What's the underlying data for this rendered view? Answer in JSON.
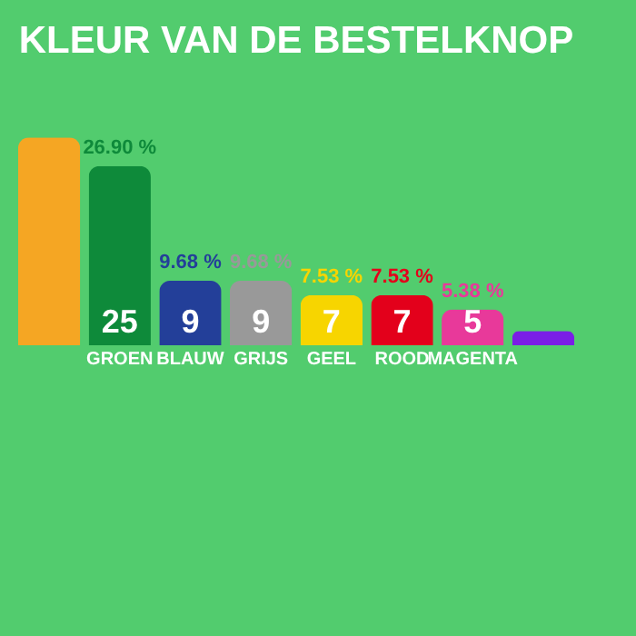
{
  "chart_data": {
    "type": "bar",
    "title": "KLEUR VAN DE BESTELKNOP",
    "categories": [
      null,
      "GROEN",
      "BLAUW",
      "GRIJS",
      "GEEL",
      "ROOD",
      "MAGENTA",
      null
    ],
    "values": [
      29,
      25,
      9,
      9,
      7,
      7,
      5,
      2
    ],
    "colors": [
      "#f5a623",
      "#0e8a3a",
      "#233f99",
      "#999999",
      "#f7d500",
      "#e3001b",
      "#e8399a",
      "#7a1ee6"
    ],
    "value_labels": [
      null,
      "25",
      "9",
      "9",
      "7",
      "7",
      "5",
      null
    ],
    "annotations": [
      {
        "text": "26.90 %",
        "x": "GROEN",
        "y": 25
      },
      {
        "text": "9.68 %",
        "x": "BLAUW",
        "y": 9
      },
      {
        "text": "9.68 %",
        "x": "GRIJS",
        "y": 9
      },
      {
        "text": "7.53 %",
        "x": "GEEL",
        "y": 7
      },
      {
        "text": "7.53 %",
        "x": "ROOD",
        "y": 7
      },
      {
        "text": "5.38 %",
        "x": "MAGENTA",
        "y": 5
      }
    ]
  }
}
